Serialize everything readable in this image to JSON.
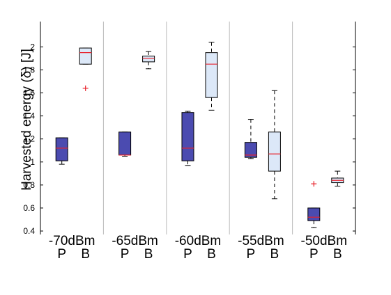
{
  "chart_data": {
    "type": "boxplot",
    "ylabel": "Harvested energy (δ) [J]",
    "xlabel": "",
    "ylim": [
      0.37,
      2.22
    ],
    "yticks": [
      0.4,
      0.6,
      0.8,
      1,
      1.2,
      1.4,
      1.6,
      1.8,
      2
    ],
    "ytick_labels": [
      "0.4",
      "0.6",
      "0.8",
      "1",
      "1.2",
      "1.4",
      "1.6",
      "1.8",
      "2"
    ],
    "groups": [
      "-70dBm",
      "-65dBm",
      "-60dBm",
      "-55dBm",
      "-50dBm"
    ],
    "sub_labels": [
      "P",
      "B"
    ],
    "colors": {
      "P_fill": "#4b4bb0",
      "B_fill": "#dce8f8",
      "median": "#e8202a",
      "outlier": "#e8202a",
      "separator": "#bbbbbb"
    },
    "boxes": [
      {
        "group": "-70dBm",
        "label": "P",
        "min": 0.98,
        "q1": 1.01,
        "median": 1.12,
        "q3": 1.21,
        "max": 1.21,
        "outliers": []
      },
      {
        "group": "-70dBm",
        "label": "B",
        "min": 1.85,
        "q1": 1.85,
        "median": 1.95,
        "q3": 1.99,
        "max": 1.99,
        "outliers": [
          1.64
        ]
      },
      {
        "group": "-65dBm",
        "label": "P",
        "min": 1.05,
        "q1": 1.06,
        "median": 1.06,
        "q3": 1.26,
        "max": 1.26,
        "outliers": []
      },
      {
        "group": "-65dBm",
        "label": "B",
        "min": 1.81,
        "q1": 1.87,
        "median": 1.9,
        "q3": 1.92,
        "max": 1.96,
        "outliers": []
      },
      {
        "group": "-60dBm",
        "label": "P",
        "min": 0.97,
        "q1": 1.01,
        "median": 1.12,
        "q3": 1.43,
        "max": 1.44,
        "outliers": []
      },
      {
        "group": "-60dBm",
        "label": "B",
        "min": 1.45,
        "q1": 1.56,
        "median": 1.85,
        "q3": 1.95,
        "max": 2.04,
        "outliers": []
      },
      {
        "group": "-55dBm",
        "label": "P",
        "min": 1.03,
        "q1": 1.04,
        "median": 1.06,
        "q3": 1.17,
        "max": 1.37,
        "outliers": []
      },
      {
        "group": "-55dBm",
        "label": "B",
        "min": 0.68,
        "q1": 0.92,
        "median": 1.07,
        "q3": 1.26,
        "max": 1.62,
        "outliers": []
      },
      {
        "group": "-50dBm",
        "label": "P",
        "min": 0.43,
        "q1": 0.49,
        "median": 0.52,
        "q3": 0.6,
        "max": 0.6,
        "outliers": [
          0.81
        ]
      },
      {
        "group": "-50dBm",
        "label": "B",
        "min": 0.79,
        "q1": 0.82,
        "median": 0.84,
        "q3": 0.86,
        "max": 0.92,
        "outliers": []
      }
    ]
  }
}
